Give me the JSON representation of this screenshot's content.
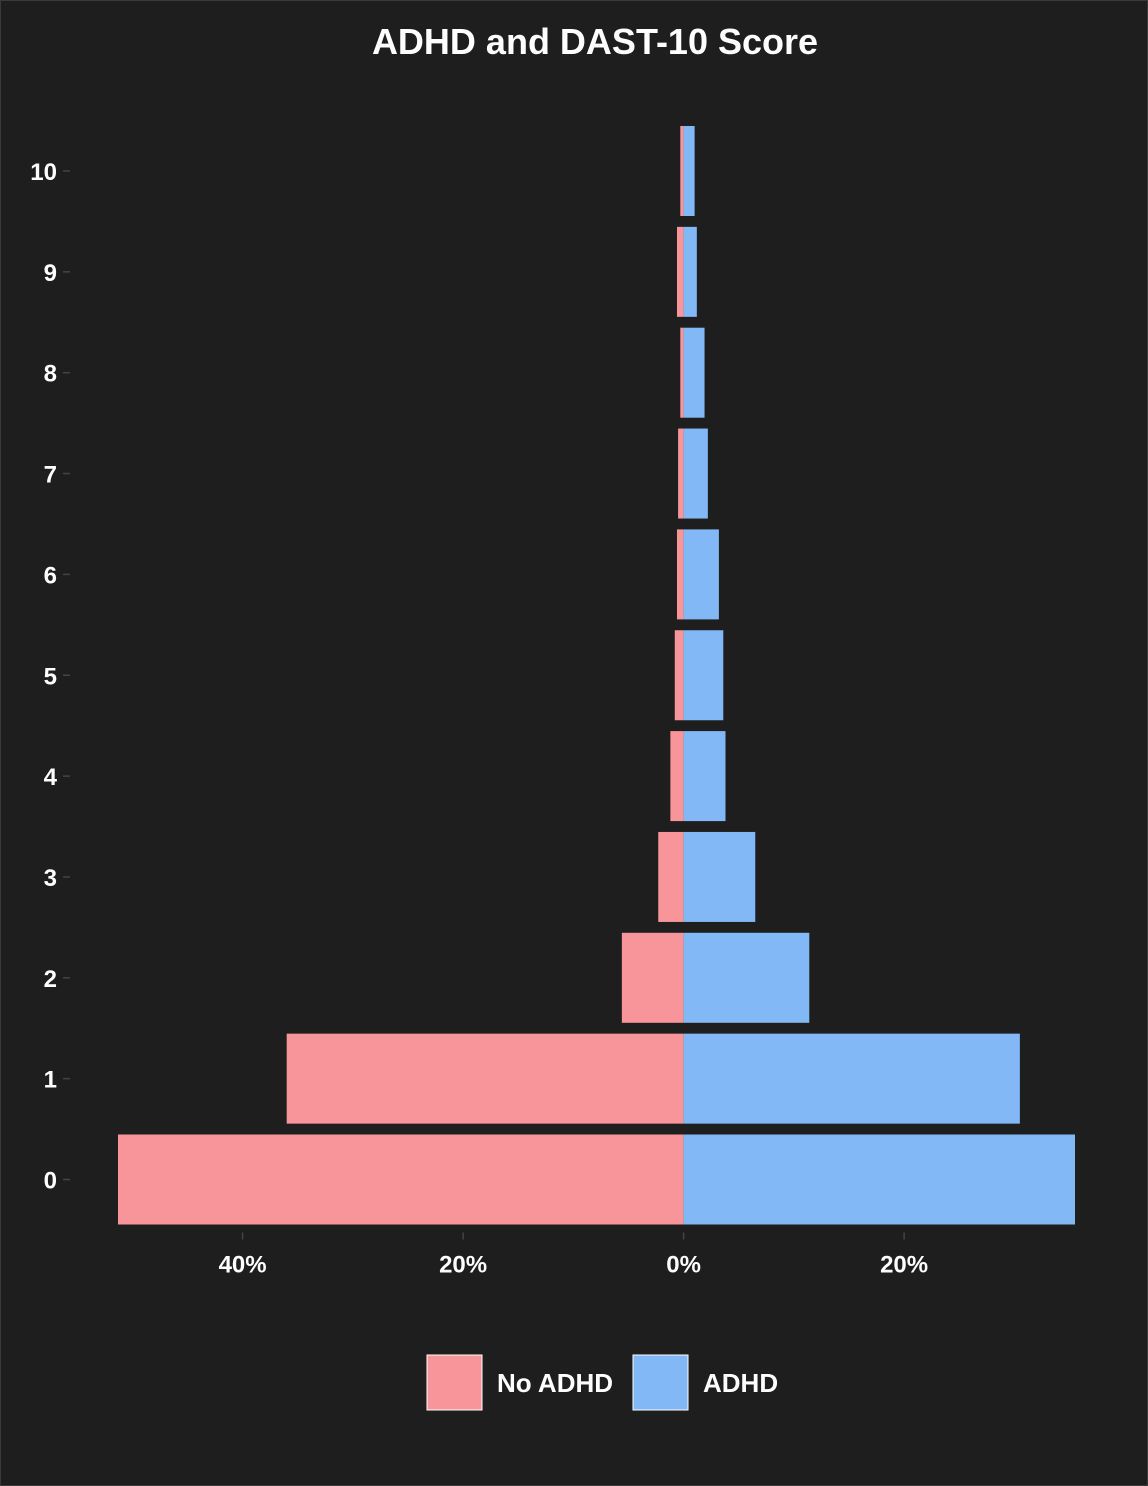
{
  "chart_data": {
    "type": "bar",
    "orientation": "horizontal-diverging",
    "title": "ADHD and DAST-10 Score",
    "xlabel": "",
    "ylabel": "",
    "categories": [
      "0",
      "1",
      "2",
      "3",
      "4",
      "5",
      "6",
      "7",
      "8",
      "9",
      "10"
    ],
    "series": [
      {
        "name": "No ADHD",
        "color": "#f7959a",
        "side": "left",
        "values": [
          51.3,
          36.0,
          5.6,
          2.3,
          1.2,
          0.8,
          0.6,
          0.5,
          0.3,
          0.6,
          0.3
        ]
      },
      {
        "name": "ADHD",
        "color": "#82b8f5",
        "side": "right",
        "values": [
          35.5,
          30.5,
          11.4,
          6.5,
          3.8,
          3.6,
          3.2,
          2.2,
          1.9,
          1.2,
          1.0
        ]
      }
    ],
    "xlim": [
      -51.3,
      35.5
    ],
    "x_tick_values": [
      -40,
      -20,
      0,
      20
    ],
    "x_tick_labels": [
      "40%",
      "20%",
      "0%",
      "20%"
    ],
    "grid": false,
    "legend_position": "bottom",
    "background": "#1e1e1e",
    "text_color": "#ffffff"
  },
  "legend": {
    "items": [
      {
        "label": "No ADHD",
        "color": "#f7959a"
      },
      {
        "label": "ADHD",
        "color": "#82b8f5"
      }
    ]
  }
}
